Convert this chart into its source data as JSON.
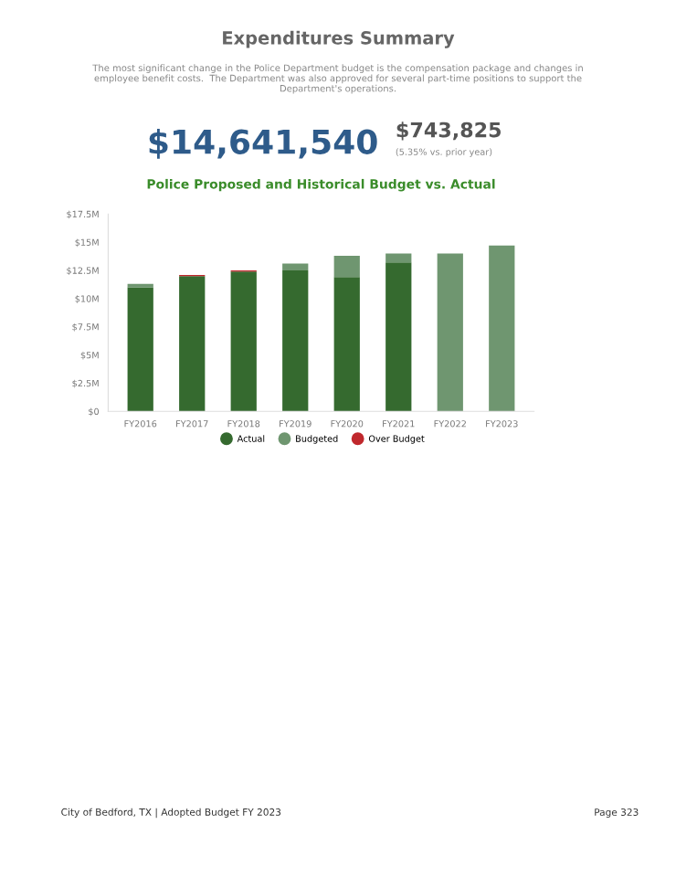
{
  "chart_data": {
    "type": "bar",
    "title": "Police Proposed and Historical Budget vs. Actual",
    "stacked": true,
    "categories": [
      "FY2016",
      "FY2017",
      "FY2018",
      "FY2019",
      "FY2020",
      "FY2021",
      "FY2022",
      "FY2023"
    ],
    "series": [
      {
        "name": "Actual",
        "color": "#356a2f",
        "values": [
          11.0,
          12.0,
          12.4,
          12.5,
          11.9,
          13.2,
          0,
          0
        ]
      },
      {
        "name": "Budgeted",
        "color": "#6f9670",
        "values": [
          0.3,
          0,
          0,
          0.6,
          1.9,
          0.8,
          14.0,
          14.7
        ]
      },
      {
        "name": "Over Budget",
        "color": "#c0282d",
        "values": [
          0,
          0.1,
          0.1,
          0,
          0,
          0,
          0,
          0
        ]
      }
    ],
    "ylim": [
      0,
      17.5
    ],
    "yticks": [
      {
        "value": 0,
        "label": "$0"
      },
      {
        "value": 2.5,
        "label": "$2.5M"
      },
      {
        "value": 5,
        "label": "$5M"
      },
      {
        "value": 7.5,
        "label": "$7.5M"
      },
      {
        "value": 10,
        "label": "$10M"
      },
      {
        "value": 12.5,
        "label": "$12.5M"
      },
      {
        "value": 15,
        "label": "$15M"
      },
      {
        "value": 17.5,
        "label": "$17.5M"
      }
    ],
    "grid": false,
    "legend": "bottom",
    "annotations": [
      "Expenditures Summary",
      "The most significant change in the Police Department budget is the compensation package and changes in employee benefit costs.  The Department was also approved for several part-time positions to support the Department's operations.",
      "$14,641,540",
      "$743,825",
      "(5.35% vs. prior year)",
      "City of Bedford, TX | Adopted Budget FY 2023",
      "Page 323"
    ]
  }
}
